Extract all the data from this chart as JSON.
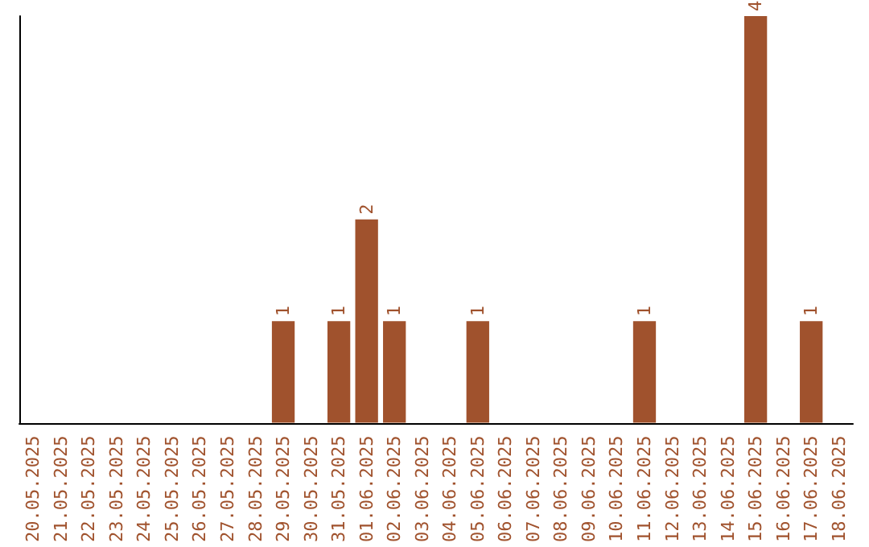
{
  "chart_data": {
    "type": "bar",
    "categories": [
      "20.05.2025",
      "21.05.2025",
      "22.05.2025",
      "23.05.2025",
      "24.05.2025",
      "25.05.2025",
      "26.05.2025",
      "27.05.2025",
      "28.05.2025",
      "29.05.2025",
      "30.05.2025",
      "31.05.2025",
      "01.06.2025",
      "02.06.2025",
      "03.06.2025",
      "04.06.2025",
      "05.06.2025",
      "06.06.2025",
      "07.06.2025",
      "08.06.2025",
      "09.06.2025",
      "10.06.2025",
      "11.06.2025",
      "12.06.2025",
      "13.06.2025",
      "14.06.2025",
      "15.06.2025",
      "16.06.2025",
      "17.06.2025",
      "18.06.2025"
    ],
    "values": [
      0,
      0,
      0,
      0,
      0,
      0,
      0,
      0,
      0,
      1,
      0,
      1,
      2,
      1,
      0,
      0,
      1,
      0,
      0,
      0,
      0,
      0,
      1,
      0,
      0,
      0,
      4,
      0,
      1,
      0
    ],
    "value_labels": [
      null,
      null,
      null,
      null,
      null,
      null,
      null,
      null,
      null,
      "1",
      null,
      "1",
      "2",
      "1",
      null,
      null,
      "1",
      null,
      null,
      null,
      null,
      null,
      "1",
      null,
      null,
      null,
      "4",
      null,
      "1",
      null
    ],
    "color": "#a0522d",
    "grid": false
  }
}
